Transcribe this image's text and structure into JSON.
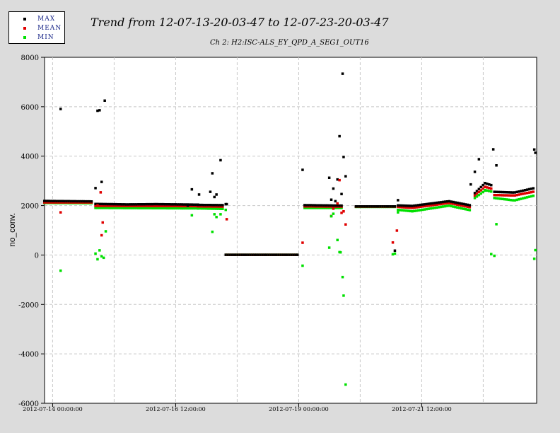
{
  "title": "Trend from 12-07-13-20-03-47 to 12-07-23-20-03-47",
  "subtitle": "Ch 2: H2:ISC-ALS_EY_QPD_A_SEG1_OUT16",
  "legend": [
    {
      "label": "MAX",
      "color": "#000000"
    },
    {
      "label": "MEAN",
      "color": "#e00000"
    },
    {
      "label": "MIN",
      "color": "#00e000"
    }
  ],
  "chart_data": {
    "type": "scatter",
    "title": "Trend from 12-07-13-20-03-47 to 12-07-23-20-03-47",
    "subtitle": "Ch 2: H2:ISC-ALS_EY_QPD_A_SEG1_OUT16",
    "ylabel": "no_conv.",
    "xlabel": "",
    "ylim": [
      -6000,
      8000
    ],
    "yticks": [
      -6000,
      -4000,
      -2000,
      0,
      2000,
      4000,
      6000,
      8000
    ],
    "xlim": [
      "2012-07-13 20:03:47",
      "2012-07-23 20:03:47"
    ],
    "xticks": [
      {
        "t": "2012-07-14 00:00:00",
        "label": "2012-07-14 00:00:00"
      },
      {
        "t": "2012-07-16 12:00:00",
        "label": "2012-07-16 12:00:00"
      },
      {
        "t": "2012-07-19 00:00:00",
        "label": "2012-07-19 00:00:00"
      },
      {
        "t": "2012-07-21 12:00:00",
        "label": "2012-07-21 12:00:00"
      }
    ],
    "gridlines": [
      "2012-07-14 00:00:00",
      "2012-07-15 06:00:00",
      "2012-07-16 12:00:00",
      "2012-07-17 18:00:00",
      "2012-07-19 00:00:00",
      "2012-07-20 06:00:00",
      "2012-07-21 12:00:00",
      "2012-07-22 18:00:00"
    ],
    "grid": true,
    "legend_position": "top-left",
    "segments": [
      {
        "start": "2012-07-13 20:03:47",
        "end": "2012-07-14 20:00:00",
        "max": [
          [
            0,
            2180
          ],
          [
            1,
            2160
          ]
        ],
        "mean": [
          [
            0,
            2120
          ],
          [
            1,
            2120
          ]
        ],
        "min": [
          [
            0,
            2100
          ],
          [
            1,
            2090
          ]
        ]
      },
      {
        "start": "2012-07-14 21:00:00",
        "end": "2012-07-16 23:00:00",
        "max": [
          [
            0,
            2060
          ],
          [
            0.3,
            2040
          ],
          [
            0.6,
            2050
          ],
          [
            1,
            2030
          ]
        ],
        "mean": [
          [
            0,
            1980
          ],
          [
            1,
            1970
          ]
        ],
        "min": [
          [
            0,
            1900
          ],
          [
            1,
            1880
          ]
        ]
      },
      {
        "start": "2012-07-16 23:00:00",
        "end": "2012-07-17 11:00:00",
        "max": [
          [
            0,
            2020
          ],
          [
            1,
            2010
          ]
        ],
        "mean": [
          [
            0,
            1960
          ],
          [
            1,
            1950
          ]
        ],
        "min": [
          [
            0,
            1880
          ],
          [
            1,
            1860
          ]
        ]
      },
      {
        "start": "2012-07-17 12:30:00",
        "end": "2012-07-18 23:30:00",
        "max": [
          [
            0,
            0
          ],
          [
            1,
            0
          ]
        ],
        "mean": [
          [
            0,
            0
          ],
          [
            1,
            0
          ]
        ],
        "min": [
          [
            0,
            0
          ],
          [
            1,
            0
          ]
        ]
      },
      {
        "start": "2012-07-19 03:00:00",
        "end": "2012-07-19 21:00:00",
        "max": [
          [
            0,
            2010
          ],
          [
            1,
            1990
          ]
        ],
        "mean": [
          [
            0,
            1960
          ],
          [
            1,
            1950
          ]
        ],
        "min": [
          [
            0,
            1900
          ],
          [
            1,
            1900
          ]
        ]
      },
      {
        "start": "2012-07-20 04:00:00",
        "end": "2012-07-20 23:00:00",
        "max": [
          [
            0,
            1960
          ],
          [
            1,
            1960
          ]
        ],
        "mean": [
          [
            0,
            1950
          ],
          [
            1,
            1950
          ]
        ],
        "min": [
          [
            0,
            1940
          ],
          [
            1,
            1940
          ]
        ]
      },
      {
        "start": "2012-07-21 00:30:00",
        "end": "2012-07-22 12:00:00",
        "max": [
          [
            0,
            2000
          ],
          [
            0.2,
            1980
          ],
          [
            0.7,
            2170
          ],
          [
            1,
            2000
          ]
        ],
        "mean": [
          [
            0,
            1940
          ],
          [
            0.2,
            1900
          ],
          [
            0.7,
            2100
          ],
          [
            1,
            1920
          ]
        ],
        "min": [
          [
            0,
            1820
          ],
          [
            0.2,
            1760
          ],
          [
            0.7,
            1990
          ],
          [
            1,
            1800
          ]
        ]
      },
      {
        "start": "2012-07-22 14:00:00",
        "end": "2012-07-22 19:00:00",
        "max": [
          [
            0,
            2500
          ],
          [
            1,
            2900
          ]
        ],
        "mean": [
          [
            0,
            2400
          ],
          [
            1,
            2750
          ]
        ],
        "min": [
          [
            0,
            2300
          ],
          [
            1,
            2600
          ]
        ]
      },
      {
        "start": "2012-07-22 19:00:00",
        "end": "2012-07-22 22:00:00",
        "max": [
          [
            0,
            2900
          ],
          [
            1,
            2820
          ]
        ],
        "mean": [
          [
            0,
            2750
          ],
          [
            1,
            2680
          ]
        ],
        "min": [
          [
            0,
            2620
          ],
          [
            1,
            2560
          ]
        ]
      },
      {
        "start": "2012-07-22 23:30:00",
        "end": "2012-07-23 19:00:00",
        "max": [
          [
            0,
            2550
          ],
          [
            0.5,
            2520
          ],
          [
            1,
            2700
          ]
        ],
        "mean": [
          [
            0,
            2420
          ],
          [
            0.5,
            2400
          ],
          [
            1,
            2560
          ]
        ],
        "min": [
          [
            0,
            2300
          ],
          [
            0.5,
            2200
          ],
          [
            1,
            2400
          ]
        ]
      }
    ],
    "outliers": [
      {
        "series": "max",
        "t": "2012-07-14 04:00:00",
        "v": 5900
      },
      {
        "series": "min",
        "t": "2012-07-14 04:00:00",
        "v": -640
      },
      {
        "series": "mean",
        "t": "2012-07-14 04:00:00",
        "v": 1720
      },
      {
        "series": "max",
        "t": "2012-07-14 21:00:00",
        "v": 2700
      },
      {
        "series": "max",
        "t": "2012-07-14 22:00:00",
        "v": 5830
      },
      {
        "series": "max",
        "t": "2012-07-14 23:00:00",
        "v": 5850
      },
      {
        "series": "max",
        "t": "2012-07-15 00:00:00",
        "v": 2950
      },
      {
        "series": "max",
        "t": "2012-07-15 01:30:00",
        "v": 6240
      },
      {
        "series": "mean",
        "t": "2012-07-14 22:00:00",
        "v": 2000
      },
      {
        "series": "mean",
        "t": "2012-07-14 23:30:00",
        "v": 2530
      },
      {
        "series": "mean",
        "t": "2012-07-15 00:00:00",
        "v": 790
      },
      {
        "series": "mean",
        "t": "2012-07-15 00:30:00",
        "v": 1310
      },
      {
        "series": "min",
        "t": "2012-07-14 21:00:00",
        "v": 50
      },
      {
        "series": "min",
        "t": "2012-07-14 22:00:00",
        "v": -180
      },
      {
        "series": "min",
        "t": "2012-07-14 23:00:00",
        "v": 180
      },
      {
        "series": "min",
        "t": "2012-07-15 00:00:00",
        "v": -60
      },
      {
        "series": "min",
        "t": "2012-07-15 01:00:00",
        "v": -120
      },
      {
        "series": "min",
        "t": "2012-07-15 02:00:00",
        "v": 950
      },
      {
        "series": "max",
        "t": "2012-07-16 20:00:00",
        "v": 2650
      },
      {
        "series": "min",
        "t": "2012-07-16 20:00:00",
        "v": 1600
      },
      {
        "series": "max",
        "t": "2012-07-16 18:00:00",
        "v": 2000
      },
      {
        "series": "max",
        "t": "2012-07-16 23:30:00",
        "v": 2440
      },
      {
        "series": "max",
        "t": "2012-07-17 05:00:00",
        "v": 2550
      },
      {
        "series": "max",
        "t": "2012-07-17 06:00:00",
        "v": 3300
      },
      {
        "series": "max",
        "t": "2012-07-17 07:00:00",
        "v": 2340
      },
      {
        "series": "max",
        "t": "2012-07-17 08:00:00",
        "v": 2440
      },
      {
        "series": "max",
        "t": "2012-07-17 10:00:00",
        "v": 3830
      },
      {
        "series": "min",
        "t": "2012-07-17 06:00:00",
        "v": 930
      },
      {
        "series": "min",
        "t": "2012-07-17 07:00:00",
        "v": 1640
      },
      {
        "series": "min",
        "t": "2012-07-17 08:00:00",
        "v": 1530
      },
      {
        "series": "min",
        "t": "2012-07-17 10:00:00",
        "v": 1640
      },
      {
        "series": "max",
        "t": "2012-07-17 12:30:00",
        "v": 2050
      },
      {
        "series": "max",
        "t": "2012-07-17 13:00:00",
        "v": 2050
      },
      {
        "series": "mean",
        "t": "2012-07-17 13:00:00",
        "v": 1440
      },
      {
        "series": "min",
        "t": "2012-07-17 12:30:00",
        "v": 1820
      },
      {
        "series": "max",
        "t": "2012-07-19 02:00:00",
        "v": 3440
      },
      {
        "series": "mean",
        "t": "2012-07-19 02:00:00",
        "v": 490
      },
      {
        "series": "min",
        "t": "2012-07-19 02:00:00",
        "v": -440
      },
      {
        "series": "max",
        "t": "2012-07-19 15:00:00",
        "v": 3120
      },
      {
        "series": "max",
        "t": "2012-07-19 16:00:00",
        "v": 2230
      },
      {
        "series": "max",
        "t": "2012-07-19 17:00:00",
        "v": 2680
      },
      {
        "series": "max",
        "t": "2012-07-19 18:00:00",
        "v": 2170
      },
      {
        "series": "max",
        "t": "2012-07-19 19:00:00",
        "v": 3050
      },
      {
        "series": "max",
        "t": "2012-07-19 20:00:00",
        "v": 4800
      },
      {
        "series": "max",
        "t": "2012-07-19 21:00:00",
        "v": 2460
      },
      {
        "series": "max",
        "t": "2012-07-19 21:30:00",
        "v": 7330
      },
      {
        "series": "max",
        "t": "2012-07-19 22:00:00",
        "v": 3960
      },
      {
        "series": "max",
        "t": "2012-07-19 23:00:00",
        "v": 3180
      },
      {
        "series": "mean",
        "t": "2012-07-19 16:00:00",
        "v": 1570
      },
      {
        "series": "mean",
        "t": "2012-07-19 17:00:00",
        "v": 1870
      },
      {
        "series": "mean",
        "t": "2012-07-19 19:00:00",
        "v": 2080
      },
      {
        "series": "mean",
        "t": "2012-07-19 20:00:00",
        "v": 3020
      },
      {
        "series": "mean",
        "t": "2012-07-19 21:00:00",
        "v": 1700
      },
      {
        "series": "mean",
        "t": "2012-07-19 22:00:00",
        "v": 1760
      },
      {
        "series": "mean",
        "t": "2012-07-19 23:00:00",
        "v": 1230
      },
      {
        "series": "min",
        "t": "2012-07-19 15:00:00",
        "v": 290
      },
      {
        "series": "min",
        "t": "2012-07-19 16:00:00",
        "v": 1560
      },
      {
        "series": "min",
        "t": "2012-07-19 17:00:00",
        "v": 1660
      },
      {
        "series": "min",
        "t": "2012-07-19 19:00:00",
        "v": 600
      },
      {
        "series": "min",
        "t": "2012-07-19 20:00:00",
        "v": 110
      },
      {
        "series": "min",
        "t": "2012-07-19 20:30:00",
        "v": 100
      },
      {
        "series": "min",
        "t": "2012-07-19 21:30:00",
        "v": -900
      },
      {
        "series": "min",
        "t": "2012-07-19 22:00:00",
        "v": -1650
      },
      {
        "series": "min",
        "t": "2012-07-19 23:00:00",
        "v": -5250
      },
      {
        "series": "max",
        "t": "2012-07-20 22:00:00",
        "v": 1960
      },
      {
        "series": "max",
        "t": "2012-07-20 23:00:00",
        "v": 170
      },
      {
        "series": "max",
        "t": "2012-07-21 00:30:00",
        "v": 2210
      },
      {
        "series": "mean",
        "t": "2012-07-20 22:00:00",
        "v": 500
      },
      {
        "series": "mean",
        "t": "2012-07-21 00:00:00",
        "v": 980
      },
      {
        "series": "min",
        "t": "2012-07-20 22:00:00",
        "v": 20
      },
      {
        "series": "min",
        "t": "2012-07-20 23:00:00",
        "v": 50
      },
      {
        "series": "min",
        "t": "2012-07-21 00:30:00",
        "v": 1720
      },
      {
        "series": "max",
        "t": "2012-07-22 12:00:00",
        "v": 2850
      },
      {
        "series": "max",
        "t": "2012-07-22 14:00:00",
        "v": 3360
      },
      {
        "series": "max",
        "t": "2012-07-22 16:00:00",
        "v": 3870
      },
      {
        "series": "max",
        "t": "2012-07-22 23:00:00",
        "v": 4270
      },
      {
        "series": "max",
        "t": "2012-07-23 00:30:00",
        "v": 3620
      },
      {
        "series": "max",
        "t": "2012-07-23 19:00:00",
        "v": 4260
      },
      {
        "series": "max",
        "t": "2012-07-23 19:30:00",
        "v": 4130
      },
      {
        "series": "min",
        "t": "2012-07-22 22:00:00",
        "v": 30
      },
      {
        "series": "min",
        "t": "2012-07-22 23:30:00",
        "v": -40
      },
      {
        "series": "min",
        "t": "2012-07-23 00:30:00",
        "v": 1240
      },
      {
        "series": "min",
        "t": "2012-07-23 19:00:00",
        "v": -160
      },
      {
        "series": "min",
        "t": "2012-07-23 19:30:00",
        "v": 190
      }
    ]
  }
}
